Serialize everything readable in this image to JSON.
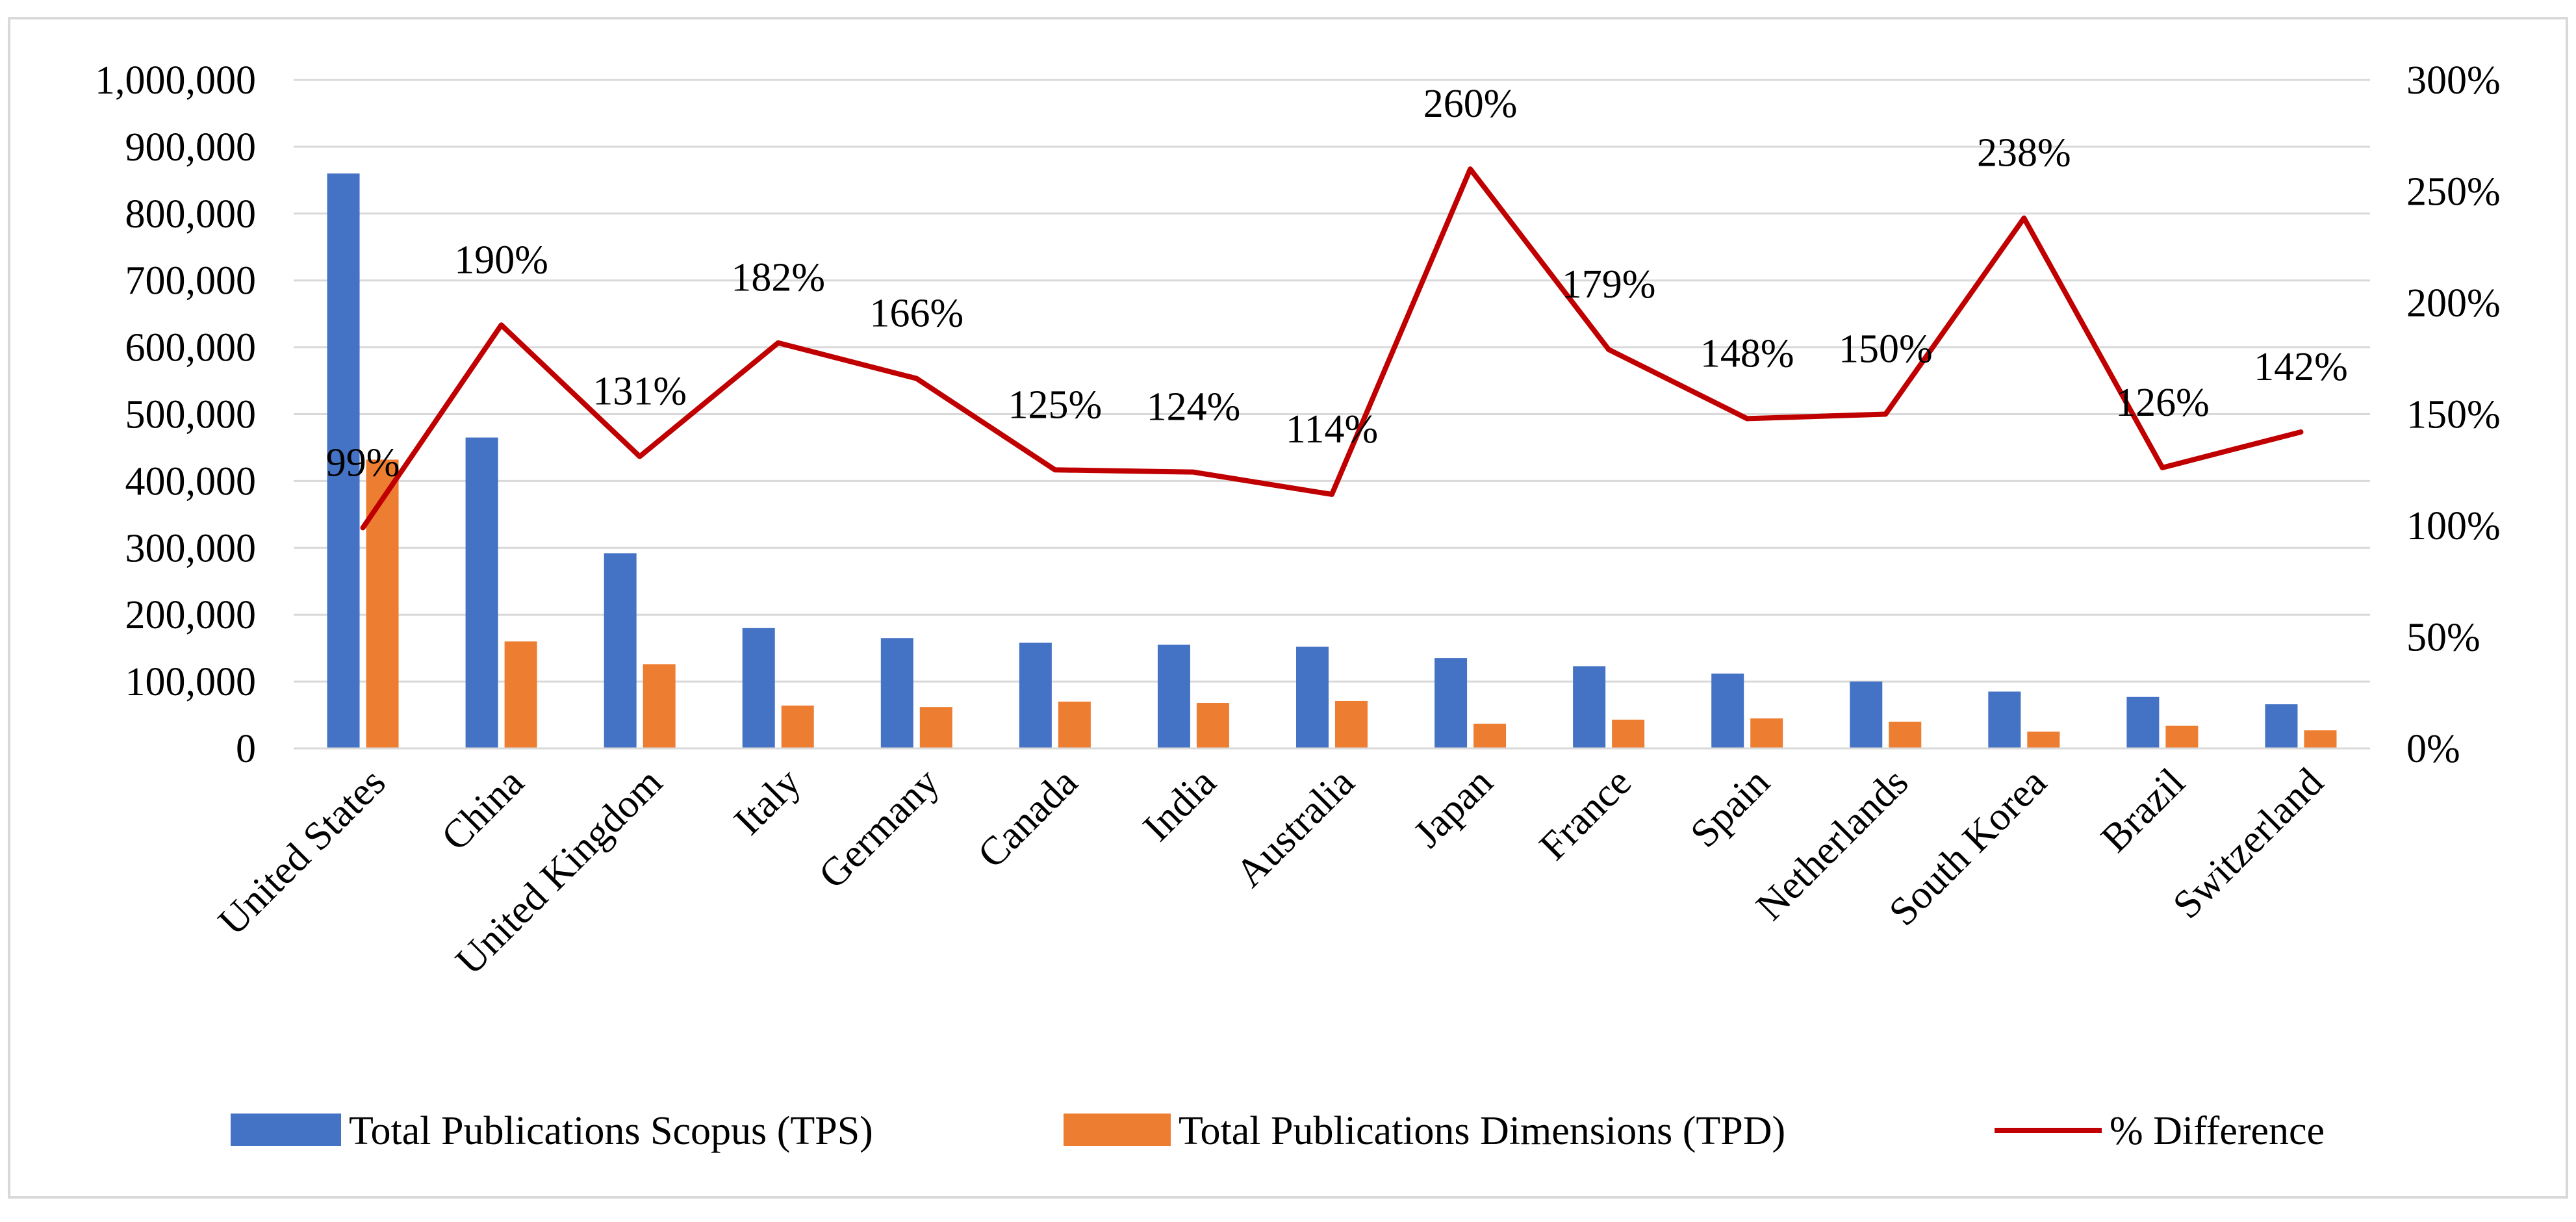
{
  "chart_data": {
    "type": "bar",
    "title": "",
    "xlabel": "",
    "ylabel": "",
    "categories": [
      "United States",
      "China",
      "United Kingdom",
      "Italy",
      "Germany",
      "Canada",
      "India",
      "Australia",
      "Japan",
      "France",
      "Spain",
      "Netherlands",
      "South Korea",
      "Brazil",
      "Switzerland"
    ],
    "series": [
      {
        "name": "Total Publications Scopus (TPS)",
        "type": "bar",
        "axis": "left",
        "color": "#4472C4",
        "values": [
          860000,
          465000,
          292000,
          180000,
          165000,
          158000,
          155000,
          152000,
          135000,
          123000,
          112000,
          100000,
          85000,
          77000,
          66000
        ]
      },
      {
        "name": "Total Publications Dimensions (TPD)",
        "type": "bar",
        "axis": "left",
        "color": "#ED7D31",
        "values": [
          432000,
          160000,
          126000,
          64000,
          62000,
          70000,
          68000,
          71000,
          37000,
          43000,
          45000,
          40000,
          25000,
          34000,
          27000
        ]
      },
      {
        "name": "% Difference",
        "type": "line",
        "axis": "right",
        "color": "#C00000",
        "values": [
          99,
          190,
          131,
          182,
          166,
          125,
          124,
          114,
          260,
          179,
          148,
          150,
          238,
          126,
          142
        ],
        "labels": [
          "99%",
          "190%",
          "131%",
          "182%",
          "166%",
          "125%",
          "124%",
          "114%",
          "260%",
          "179%",
          "148%",
          "150%",
          "238%",
          "126%",
          "142%"
        ]
      }
    ],
    "ylim": [
      0,
      1000000
    ],
    "y_ticks": [
      "0",
      "100,000",
      "200,000",
      "300,000",
      "400,000",
      "500,000",
      "600,000",
      "700,000",
      "800,000",
      "900,000",
      "1,000,000"
    ],
    "y2lim": [
      0,
      300
    ],
    "y2_ticks": [
      "0%",
      "50%",
      "100%",
      "150%",
      "200%",
      "250%",
      "300%"
    ],
    "grid": true,
    "legend_position": "bottom"
  }
}
